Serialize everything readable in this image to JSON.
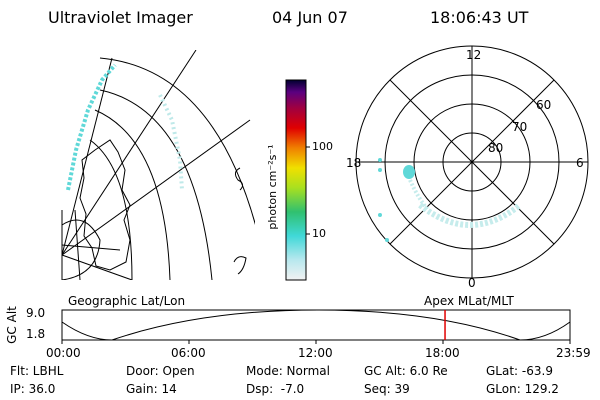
{
  "header": {
    "title": "Ultraviolet Imager",
    "date": "04 Jun 07",
    "time": "18:06:43 UT"
  },
  "colorbar": {
    "label": "photon cm⁻²s⁻¹",
    "ticks": [
      "100",
      "10"
    ],
    "scale": "log"
  },
  "polar_plot": {
    "mlt_labels": [
      "12",
      "18",
      "6",
      "0"
    ],
    "lat_labels": [
      "60",
      "70",
      "80"
    ]
  },
  "map_labels": {
    "left": "Geographic Lat/Lon",
    "right": "Apex MLat/MLT"
  },
  "timeline": {
    "ylabel": "GC Alt",
    "ytick_top": "9.0",
    "ytick_bottom": "1.8",
    "xticks": [
      "00:00",
      "06:00",
      "12:00",
      "18:00",
      "23:59"
    ],
    "current_fraction": 0.754
  },
  "info": {
    "flt": "Flt: LBHL",
    "ip": "IP: 36.0",
    "door": "Door: Open",
    "gain": "Gain: 14",
    "mode": "Mode: Normal",
    "dsp": "Dsp:  -7.0",
    "gc_alt": "GC Alt: 6.0 Re",
    "seq": "Seq: 39",
    "glat": "GLat: -63.9",
    "glon": "GLon: 129.2"
  },
  "colors": {
    "emission": "#5fd8d8",
    "cursor": "#e00000"
  }
}
